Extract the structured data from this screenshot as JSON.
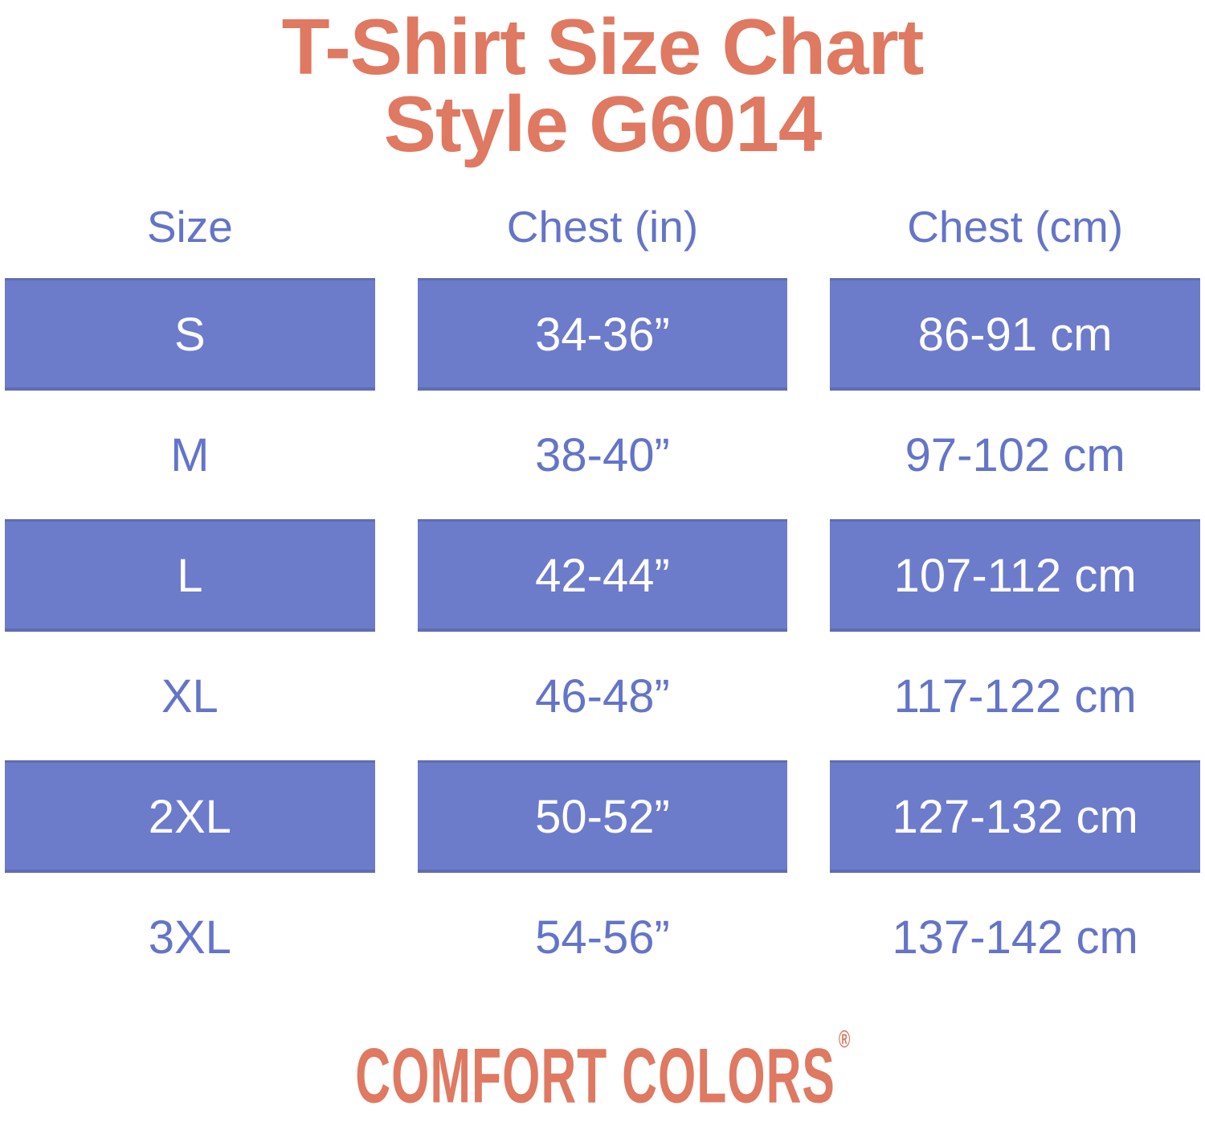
{
  "title": {
    "line1": "T-Shirt Size Chart",
    "line2": "Style G6014",
    "full": "T-Shirt Size Chart Style G6014"
  },
  "chart_data": {
    "type": "table",
    "title": "T-Shirt Size Chart Style G6014",
    "columns": [
      "Size",
      "Chest (in)",
      "Chest (cm)"
    ],
    "rows": [
      [
        "S",
        "34-36”",
        "86-91 cm"
      ],
      [
        "M",
        "38-40”",
        "97-102 cm"
      ],
      [
        "L",
        "42-44”",
        "107-112 cm"
      ],
      [
        "XL",
        "46-48”",
        "117-122 cm"
      ],
      [
        "2XL",
        "50-52”",
        "127-132 cm"
      ],
      [
        "3XL",
        "54-56”",
        "137-142 cm"
      ]
    ],
    "highlighted_rows": [
      0,
      2,
      4
    ],
    "layout_hints": {
      "highlight_style": "purple block with white text",
      "plain_style": "white background with purple text"
    }
  },
  "brand": {
    "name": "COMFORT COLORS",
    "registered_mark": "®"
  },
  "colors": {
    "coral": "#DF7961",
    "purple": "#6D7BCB",
    "purpleText": "#6474C8",
    "white": "#FFFFFF"
  }
}
